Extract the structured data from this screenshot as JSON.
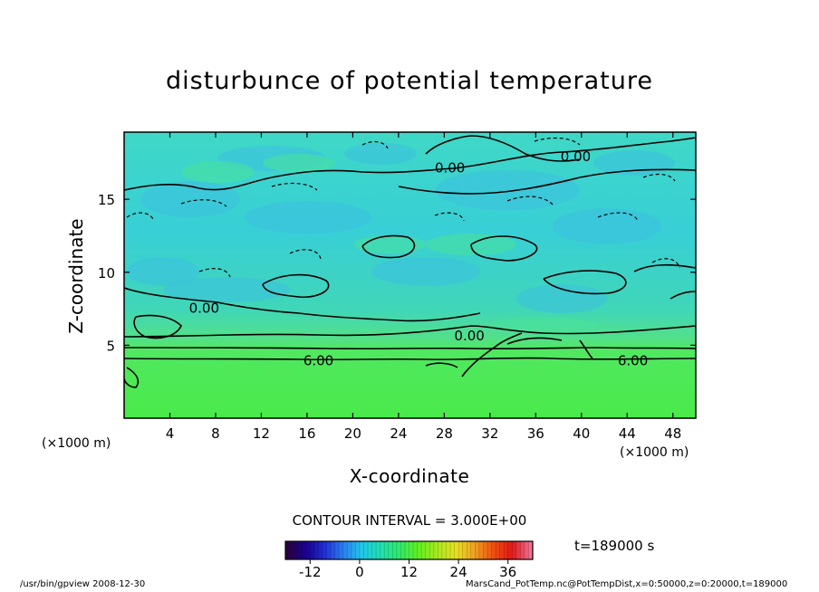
{
  "chart_data": {
    "type": "heatmap",
    "title": "disturbunce of potential temperature",
    "xlabel": "X-coordinate",
    "ylabel": "Z-coordinate",
    "x_unit": "(×1000 m)",
    "y_unit": "(×1000 m)",
    "xlim": [
      0,
      50
    ],
    "ylim": [
      0,
      19.6
    ],
    "x_ticks": [
      4,
      8,
      12,
      16,
      20,
      24,
      28,
      32,
      36,
      40,
      44,
      48
    ],
    "y_ticks": [
      5,
      10,
      15
    ],
    "contour_interval_text": "CONTOUR INTERVAL = 3.000E+00",
    "contour_labels": [
      {
        "text": "0.00",
        "x": 28.5,
        "z": 17.2
      },
      {
        "text": "0.00",
        "x": 39.5,
        "z": 18.0
      },
      {
        "text": "0.00",
        "x": 7.0,
        "z": 7.6
      },
      {
        "text": "0.00",
        "x": 30.2,
        "z": 5.7
      },
      {
        "text": "6.00",
        "x": 17.0,
        "z": 4.0
      },
      {
        "text": "6.00",
        "x": 44.5,
        "z": 4.0
      }
    ],
    "field_description_bands": [
      {
        "z_from": 0,
        "z_to": 4.0,
        "value_range": [
          6,
          9
        ]
      },
      {
        "z_from": 4.0,
        "z_to": 5.0,
        "value_range": [
          3,
          6
        ]
      },
      {
        "z_from": 5.0,
        "z_to": 19.6,
        "value_range": [
          -3,
          3
        ]
      }
    ],
    "colorbar": {
      "range": [
        -18,
        42
      ],
      "tick_labels": [
        "-12",
        "0",
        "12",
        "24",
        "36"
      ],
      "tick_values": [
        -12,
        0,
        12,
        24,
        36
      ],
      "colors": [
        "#2a0040",
        "#1a0090",
        "#2030d8",
        "#2a80f0",
        "#20c8e8",
        "#20e0b0",
        "#30e868",
        "#60f020",
        "#a8e820",
        "#e8e020",
        "#f0a020",
        "#f05010",
        "#e01818",
        "#f07090"
      ]
    }
  },
  "time_label": "t=189000 s",
  "footer_left": "/usr/bin/gpview   2008-12-30",
  "footer_right": "MarsCand_PotTemp.nc@PotTempDist,x=0:50000,z=0:20000,t=189000",
  "colors": {
    "upper_field": "#38d7bf",
    "lower_field": "#47e85a",
    "blue_patch": "#3cc0e0",
    "green_patch": "#48e29a"
  }
}
